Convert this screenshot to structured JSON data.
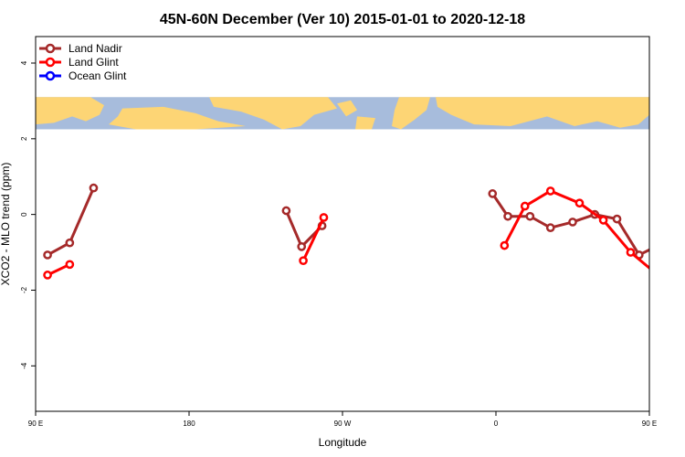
{
  "chart_data": {
    "type": "line",
    "title": "45N-60N December (Ver 10)   2015-01-01 to 2020-12-18",
    "xlabel": "Longitude",
    "ylabel": "XCO2 - MLO trend (ppm)",
    "xlim": [
      90,
      450
    ],
    "ylim": [
      -5.2,
      4.7
    ],
    "x_ticks": [
      {
        "value": 90,
        "label": "90 E"
      },
      {
        "value": 180,
        "label": "180"
      },
      {
        "value": 270,
        "label": "90 W"
      },
      {
        "value": 360,
        "label": "0"
      },
      {
        "value": 450,
        "label": "90 E"
      }
    ],
    "y_ticks": [
      {
        "value": -4,
        "label": "-4"
      },
      {
        "value": -2,
        "label": "-2"
      },
      {
        "value": 0,
        "label": "0"
      },
      {
        "value": 2,
        "label": "2"
      },
      {
        "value": 4,
        "label": "4"
      }
    ],
    "legend_position": "top-left",
    "map_strip": {
      "ymin": 2.25,
      "ymax": 3.1,
      "ocean_color": "#a7bcdc",
      "land_color": "#fdd575"
    },
    "series": [
      {
        "name": "Land Nadir",
        "color": "#a52a2a",
        "segments": [
          [
            [
              97,
              -1.07
            ],
            [
              110,
              -0.75
            ],
            [
              124,
              0.7
            ]
          ],
          [
            [
              237,
              0.1
            ],
            [
              246,
              -0.85
            ],
            [
              258,
              -0.3
            ]
          ],
          [
            [
              358,
              0.55
            ],
            [
              367,
              -0.05
            ],
            [
              380,
              -0.05
            ],
            [
              392,
              -0.35
            ],
            [
              405,
              -0.2
            ],
            [
              418,
              0.0
            ],
            [
              431,
              -0.12
            ],
            [
              444,
              -1.07
            ],
            [
              458,
              -0.75
            ],
            [
              472,
              0.7
            ]
          ]
        ]
      },
      {
        "name": "Land Glint",
        "color": "#ff0000",
        "segments": [
          [
            [
              97,
              -1.6
            ],
            [
              110,
              -1.32
            ]
          ],
          [
            [
              247,
              -1.22
            ],
            [
              259,
              -0.08
            ]
          ],
          [
            [
              365,
              -0.82
            ],
            [
              377,
              0.22
            ],
            [
              392,
              0.62
            ],
            [
              409,
              0.3
            ],
            [
              423,
              -0.15
            ],
            [
              439,
              -1.0
            ],
            [
              455,
              -1.6
            ],
            [
              470,
              -1.32
            ]
          ]
        ]
      },
      {
        "name": "Ocean Glint",
        "color": "#0000ff",
        "segments": []
      }
    ]
  }
}
